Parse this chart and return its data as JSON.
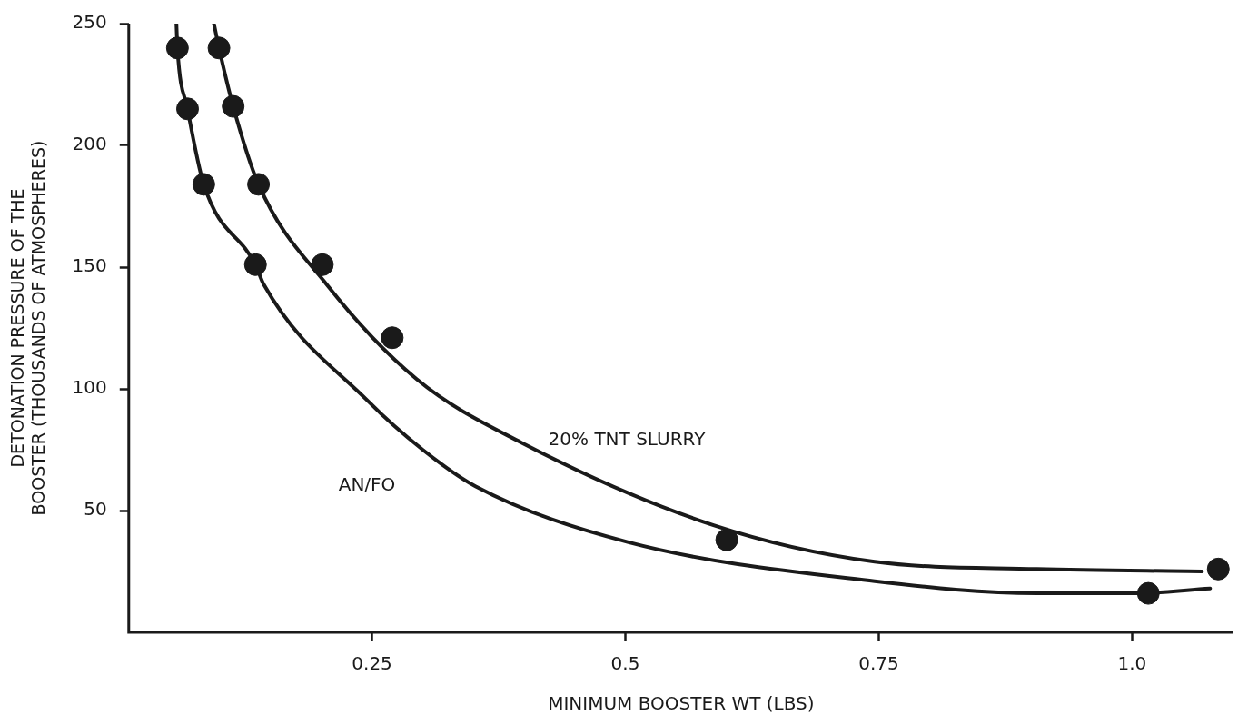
{
  "chart_data": {
    "type": "scatter",
    "xlabel": "MINIMUM BOOSTER WT (LBS)",
    "ylabel": "DETONATION PRESSURE OF THE BOOSTER (THOUSANDS OF ATMOSPHERES)",
    "xlim": [
      0.01,
      1.1
    ],
    "xticks": [
      0.25,
      0.5,
      0.75,
      {
        "value": 1.0,
        "label": "1.0"
      }
    ],
    "ylim": [
      0,
      250
    ],
    "yticks": [
      50,
      100,
      150,
      200,
      250
    ],
    "grid": false,
    "legend": false,
    "marker": "circle",
    "series": [
      {
        "color": "#1a1a1a",
        "x": [
          0.058,
          0.068,
          0.084,
          0.135,
          1.016
        ],
        "values": [
          240,
          215,
          184,
          151,
          16
        ]
      },
      {
        "color": "#1a1a1a",
        "x": [
          0.099,
          0.113,
          0.138,
          0.201,
          0.27,
          0.6,
          1.085
        ],
        "values": [
          240,
          216,
          184,
          151,
          121,
          38,
          26
        ]
      },
      {
        "type": "line",
        "name": "AN/FO",
        "color": "#1a1a1a",
        "marker": "none",
        "x": [
          0.057,
          0.058,
          0.068,
          0.084,
          0.135,
          0.143,
          0.246,
          0.3,
          0.352,
          0.503,
          0.746,
          0.906,
          1.0,
          1.077
        ],
        "values": [
          250,
          240,
          215,
          184,
          151,
          143,
          95,
          75,
          60,
          37,
          21,
          16,
          16,
          18
        ]
      },
      {
        "type": "line",
        "name": "20% TNT SLURRY",
        "color": "#1a1a1a",
        "marker": "none",
        "x": [
          0.094,
          0.099,
          0.113,
          0.138,
          0.205,
          0.294,
          0.397,
          0.587,
          0.746,
          0.906,
          1.069
        ],
        "values": [
          250,
          240,
          216,
          184,
          143,
          104,
          78,
          44,
          29,
          26,
          25
        ]
      }
    ]
  }
}
